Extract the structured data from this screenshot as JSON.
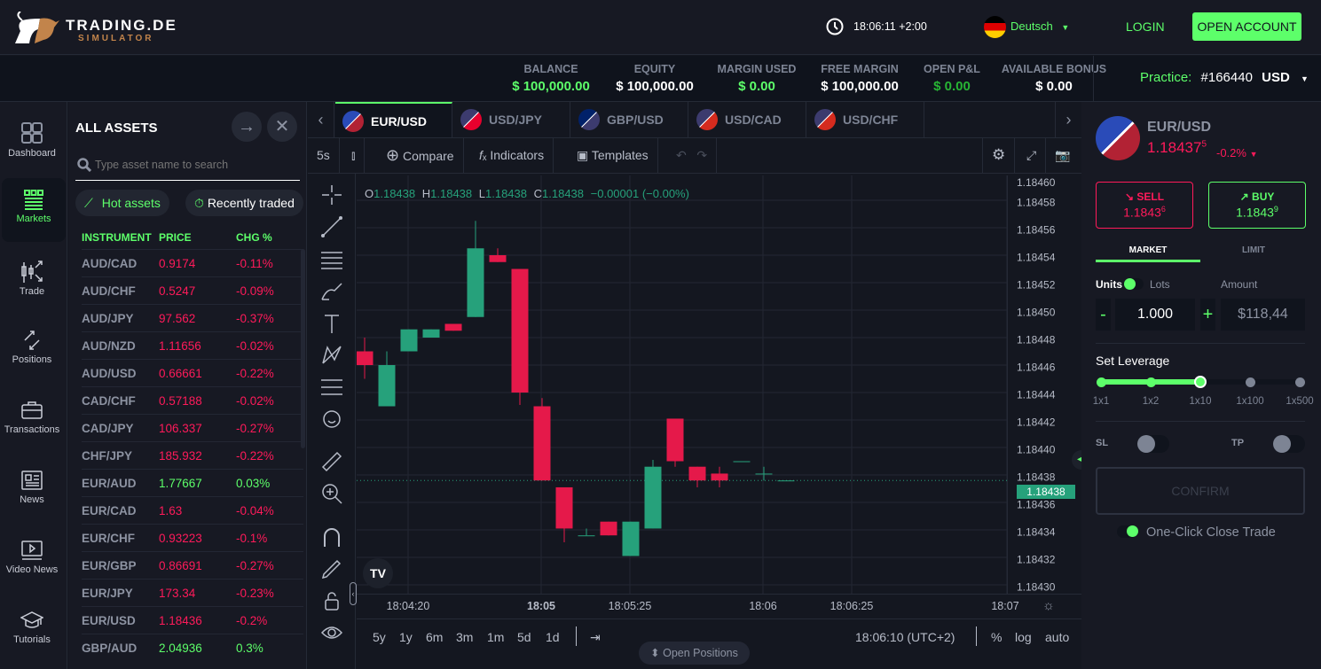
{
  "header": {
    "logo_top": "TRADING.DE",
    "logo_bottom": "SIMULATOR",
    "clock": "18:06:11 +2:00",
    "language": "Deutsch",
    "login": "LOGIN",
    "open_account": "OPEN ACCOUNT"
  },
  "balance_bar": [
    {
      "label": "BALANCE",
      "value": "$ 100,000.00",
      "color": "green"
    },
    {
      "label": "EQUITY",
      "value": "$ 100,000.00",
      "color": "white"
    },
    {
      "label": "MARGIN USED",
      "value": "$ 0.00",
      "color": "green"
    },
    {
      "label": "FREE MARGIN",
      "value": "$ 100,000.00",
      "color": "white"
    },
    {
      "label": "OPEN P&L",
      "value": "$ 0.00",
      "color": "dgreen"
    },
    {
      "label": "AVAILABLE BONUS",
      "value": "$ 0.00",
      "color": "white"
    }
  ],
  "account": {
    "mode": "Practice:",
    "id": "#166440",
    "currency": "USD"
  },
  "nav": [
    {
      "label": "Dashboard"
    },
    {
      "label": "Markets"
    },
    {
      "label": "Trade"
    },
    {
      "label": "Positions"
    },
    {
      "label": "Transactions"
    },
    {
      "label": "News"
    },
    {
      "label": "Video News"
    },
    {
      "label": "Tutorials"
    }
  ],
  "assets": {
    "title": "ALL ASSETS",
    "search_placeholder": "Type asset name to search",
    "hot": "Hot assets",
    "recent": "Recently traded",
    "columns": [
      "INSTRUMENT",
      "PRICE",
      "CHG %"
    ],
    "rows": [
      [
        "AUD/CAD",
        "0.9174",
        "-0.11%"
      ],
      [
        "AUD/CHF",
        "0.5247",
        "-0.09%"
      ],
      [
        "AUD/JPY",
        "97.562",
        "-0.37%"
      ],
      [
        "AUD/NZD",
        "1.11656",
        "-0.02%"
      ],
      [
        "AUD/USD",
        "0.66661",
        "-0.22%"
      ],
      [
        "CAD/CHF",
        "0.57188",
        "-0.02%"
      ],
      [
        "CAD/JPY",
        "106.337",
        "-0.27%"
      ],
      [
        "CHF/JPY",
        "185.932",
        "-0.22%"
      ],
      [
        "EUR/AUD",
        "1.77667",
        "0.03%"
      ],
      [
        "EUR/CAD",
        "1.63",
        "-0.04%"
      ],
      [
        "EUR/CHF",
        "0.93223",
        "-0.1%"
      ],
      [
        "EUR/GBP",
        "0.86691",
        "-0.27%"
      ],
      [
        "EUR/JPY",
        "173.34",
        "-0.23%"
      ],
      [
        "EUR/USD",
        "1.18436",
        "-0.2%"
      ],
      [
        "GBP/AUD",
        "2.04936",
        "0.3%"
      ]
    ]
  },
  "chart": {
    "tabs": [
      "EUR/USD",
      "USD/JPY",
      "GBP/USD",
      "USD/CAD",
      "USD/CHF"
    ],
    "toolbar": {
      "interval": "5s",
      "compare": "Compare",
      "indicators": "Indicators",
      "templates": "Templates"
    },
    "ohlc": {
      "o_label": "O",
      "o": "1.18438",
      "h_label": "H",
      "h": "1.18438",
      "l_label": "L",
      "l": "1.18438",
      "c_label": "C",
      "c": "1.18438",
      "change": "−0.00001 (−0.00%)"
    },
    "current_price": "1.18438",
    "price_ticks": [
      "1.18460",
      "1.18458",
      "1.18456",
      "1.18454",
      "1.18452",
      "1.18450",
      "1.18448",
      "1.18446",
      "1.18444",
      "1.18442",
      "1.18440",
      "1.18438",
      "1.18436",
      "1.18434",
      "1.18432",
      "1.18430"
    ],
    "time_ticks": [
      "18:04:20",
      "18:05",
      "18:05:25",
      "18:06",
      "18:06:25",
      "18:07"
    ],
    "ranges": [
      "5y",
      "1y",
      "6m",
      "3m",
      "1m",
      "5d",
      "1d"
    ],
    "time_display": "18:06:10 (UTC+2)",
    "pct": "%",
    "log": "log",
    "auto": "auto",
    "open_positions": "Open Positions",
    "colors": {
      "up": "#26a17b",
      "down": "#e5194a"
    }
  },
  "chart_data": {
    "type": "candlestick",
    "ylim": [
      1.1843,
      1.1846
    ],
    "candles": [
      [
        1.18447,
        1.18448,
        1.18445,
        1.18446
      ],
      [
        1.18443,
        1.18447,
        1.18443,
        1.18446
      ],
      [
        1.18447,
        1.184486,
        1.18447,
        1.184486
      ],
      [
        1.18448,
        1.184486,
        1.18448,
        1.184486
      ],
      [
        1.18449,
        1.18449,
        1.184485,
        1.184485
      ],
      [
        1.184495,
        1.184565,
        1.184495,
        1.184545
      ],
      [
        1.18454,
        1.184545,
        1.184535,
        1.184535
      ],
      [
        1.18453,
        1.18453,
        1.184431,
        1.18444
      ],
      [
        1.18443,
        1.184436,
        1.184376,
        1.184376
      ],
      [
        1.184371,
        1.184371,
        1.184331,
        1.184341
      ],
      [
        1.184336,
        1.184341,
        1.184336,
        1.184336
      ],
      [
        1.184346,
        1.184346,
        1.184336,
        1.184336
      ],
      [
        1.184321,
        1.184346,
        1.184321,
        1.184346
      ],
      [
        1.184341,
        1.184391,
        1.184341,
        1.184386
      ],
      [
        1.184421,
        1.184421,
        1.184386,
        1.18439
      ],
      [
        1.184386,
        1.184386,
        1.184371,
        1.184376
      ],
      [
        1.184381,
        1.184386,
        1.184371,
        1.184376
      ],
      [
        1.18439,
        1.18439,
        1.18439,
        1.18439
      ],
      [
        1.184381,
        1.184386,
        1.184376,
        1.184381
      ],
      [
        1.184376,
        1.184376,
        1.184376,
        1.184376
      ]
    ]
  },
  "trade": {
    "symbol": "EUR/USD",
    "price_main": "1.18437",
    "price_sup": "5",
    "change": "-0.2%",
    "sell": "SELL",
    "sell_price": "1.1843",
    "sell_sup": "6",
    "buy": "BUY",
    "buy_price": "1.1843",
    "buy_sup": "9",
    "market": "MARKET",
    "limit": "LIMIT",
    "units": "Units",
    "lots": "Lots",
    "amount_label": "Amount",
    "quantity": "1.000",
    "amount": "$118,44",
    "minus": "-",
    "plus": "+",
    "leverage_title": "Set Leverage",
    "leverage": [
      "1x1",
      "1x2",
      "1x10",
      "1x100",
      "1x500"
    ],
    "leverage_selected": "1x10",
    "sl": "SL",
    "tp": "TP",
    "confirm": "CONFIRM",
    "one_click": "One-Click Close Trade"
  }
}
